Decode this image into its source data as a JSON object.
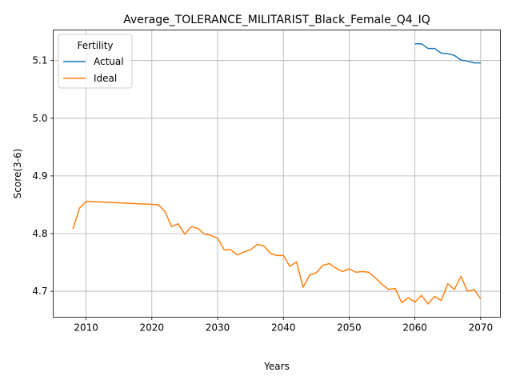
{
  "chart_data": {
    "type": "line",
    "title": "Average_TOLERANCE_MILITARIST_Black_Female_Q4_IQ",
    "xlabel": "Years",
    "ylabel": "Score(3-6)",
    "xlim": [
      2005,
      2073
    ],
    "ylim": [
      4.655,
      5.153
    ],
    "xticks": [
      2010,
      2020,
      2030,
      2040,
      2050,
      2060,
      2070
    ],
    "yticks": [
      4.7,
      4.8,
      4.9,
      5.0,
      5.1
    ],
    "grid": true,
    "legend": {
      "title": "Fertility",
      "placement": "top-left"
    },
    "series": [
      {
        "name": "Actual",
        "color": "#1f77b4",
        "x": [
          2060,
          2061,
          2062,
          2063,
          2064,
          2065,
          2066,
          2067,
          2068,
          2069,
          2070
        ],
        "y": [
          5.129,
          5.129,
          5.121,
          5.121,
          5.113,
          5.112,
          5.109,
          5.101,
          5.099,
          5.096,
          5.096
        ]
      },
      {
        "name": "Ideal",
        "color": "#ff7f0e",
        "x": [
          2008,
          2009,
          2010,
          2021,
          2022,
          2023,
          2024,
          2025,
          2026,
          2027,
          2028,
          2029,
          2030,
          2031,
          2032,
          2033,
          2034,
          2035,
          2036,
          2037,
          2038,
          2039,
          2040,
          2041,
          2042,
          2043,
          2044,
          2045,
          2046,
          2047,
          2048,
          2049,
          2050,
          2051,
          2052,
          2053,
          2054,
          2055,
          2056,
          2057,
          2058,
          2059,
          2060,
          2061,
          2062,
          2063,
          2064,
          2065,
          2066,
          2067,
          2068,
          2069,
          2070
        ],
        "y": [
          4.808,
          4.844,
          4.856,
          4.85,
          4.838,
          4.812,
          4.817,
          4.799,
          4.812,
          4.809,
          4.799,
          4.797,
          4.792,
          4.772,
          4.772,
          4.763,
          4.768,
          4.772,
          4.781,
          4.779,
          4.766,
          4.762,
          4.762,
          4.743,
          4.751,
          4.707,
          4.728,
          4.732,
          4.745,
          4.748,
          4.74,
          4.734,
          4.739,
          4.733,
          4.734,
          4.733,
          4.723,
          4.712,
          4.703,
          4.705,
          4.68,
          4.689,
          4.681,
          4.693,
          4.678,
          4.691,
          4.684,
          4.713,
          4.703,
          4.726,
          4.7,
          4.703,
          4.687
        ]
      }
    ]
  }
}
